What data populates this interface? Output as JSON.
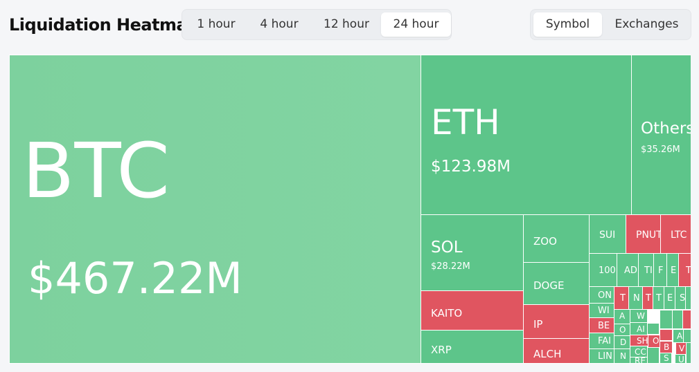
{
  "header": {
    "title": "Liquidation Heatmap",
    "time_tabs": [
      {
        "label": "1 hour",
        "active": false
      },
      {
        "label": "4 hour",
        "active": false
      },
      {
        "label": "12 hour",
        "active": false
      },
      {
        "label": "24 hour",
        "active": true
      }
    ],
    "view_tabs": [
      {
        "label": "Symbol",
        "active": true
      },
      {
        "label": "Exchanges",
        "active": false
      }
    ]
  },
  "colors": {
    "long_green": "#5dc58a",
    "btc_green": "#7ed19f",
    "short_red": "#e05560"
  },
  "heatmap": {
    "tiles": [
      {
        "symbol": "BTC",
        "value": "$467.22M"
      },
      {
        "symbol": "ETH",
        "value": "$123.98M"
      },
      {
        "symbol": "Others",
        "value": "$35.26M"
      },
      {
        "symbol": "SOL",
        "value": "$28.22M"
      },
      {
        "symbol": "ZOO",
        "value": ""
      },
      {
        "symbol": "DOGE",
        "value": ""
      },
      {
        "symbol": "KAITO",
        "value": ""
      },
      {
        "symbol": "IP",
        "value": ""
      },
      {
        "symbol": "XRP",
        "value": ""
      },
      {
        "symbol": "ALCH",
        "value": ""
      },
      {
        "symbol": "SUI",
        "value": ""
      },
      {
        "symbol": "PNUT",
        "value": ""
      },
      {
        "symbol": "LTC",
        "value": ""
      },
      {
        "symbol": "100",
        "value": ""
      },
      {
        "symbol": "AD",
        "value": ""
      },
      {
        "symbol": "TI",
        "value": ""
      },
      {
        "symbol": "F",
        "value": ""
      },
      {
        "symbol": "E",
        "value": ""
      },
      {
        "symbol": "T",
        "value": ""
      },
      {
        "symbol": "ON",
        "value": ""
      },
      {
        "symbol": "T",
        "value": ""
      },
      {
        "symbol": "N",
        "value": ""
      },
      {
        "symbol": "T",
        "value": ""
      },
      {
        "symbol": "T",
        "value": ""
      },
      {
        "symbol": "E",
        "value": ""
      },
      {
        "symbol": "S",
        "value": ""
      },
      {
        "symbol": "WI",
        "value": ""
      },
      {
        "symbol": "A",
        "value": ""
      },
      {
        "symbol": "W",
        "value": ""
      },
      {
        "symbol": "BE",
        "value": ""
      },
      {
        "symbol": "O",
        "value": ""
      },
      {
        "symbol": "AI",
        "value": ""
      },
      {
        "symbol": "SH",
        "value": ""
      },
      {
        "symbol": "O",
        "value": ""
      },
      {
        "symbol": "A",
        "value": ""
      },
      {
        "symbol": "FAI",
        "value": ""
      },
      {
        "symbol": "D",
        "value": ""
      },
      {
        "symbol": "CC",
        "value": ""
      },
      {
        "symbol": "B",
        "value": ""
      },
      {
        "symbol": "V",
        "value": ""
      },
      {
        "symbol": "LIN",
        "value": ""
      },
      {
        "symbol": "N",
        "value": ""
      },
      {
        "symbol": "RE",
        "value": ""
      },
      {
        "symbol": "S",
        "value": ""
      },
      {
        "symbol": "U",
        "value": ""
      }
    ]
  }
}
